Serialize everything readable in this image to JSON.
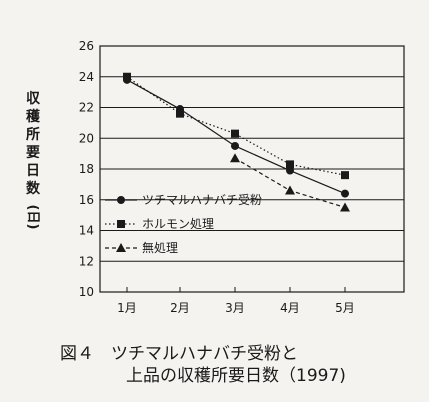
{
  "chart_data": {
    "type": "line",
    "categories": [
      "1月",
      "2月",
      "3月",
      "4月",
      "5月"
    ],
    "ylabel_chars": [
      "収",
      "穫",
      "所",
      "要",
      "日",
      "数",
      "(日)"
    ],
    "ylim": [
      10,
      26
    ],
    "yticks": [
      10,
      12,
      14,
      16,
      18,
      20,
      22,
      24,
      26
    ],
    "grid": "horizontal",
    "legend_position": "left",
    "series": [
      {
        "name": "ツチマルハナバチ受粉",
        "marker": "circle",
        "line": "solid",
        "values": [
          23.8,
          21.9,
          19.5,
          17.9,
          16.4
        ]
      },
      {
        "name": "ホルモン処理",
        "marker": "square",
        "line": "dotted",
        "values": [
          24.0,
          21.6,
          20.3,
          18.3,
          17.6
        ]
      },
      {
        "name": "無処理",
        "marker": "triangle",
        "line": "dashed",
        "values": [
          null,
          null,
          18.7,
          16.6,
          15.5
        ]
      }
    ]
  },
  "caption": {
    "line1": "図４　ツチマルハナバチ受粉と",
    "line2": "上品の収穫所要日数（1997)"
  }
}
